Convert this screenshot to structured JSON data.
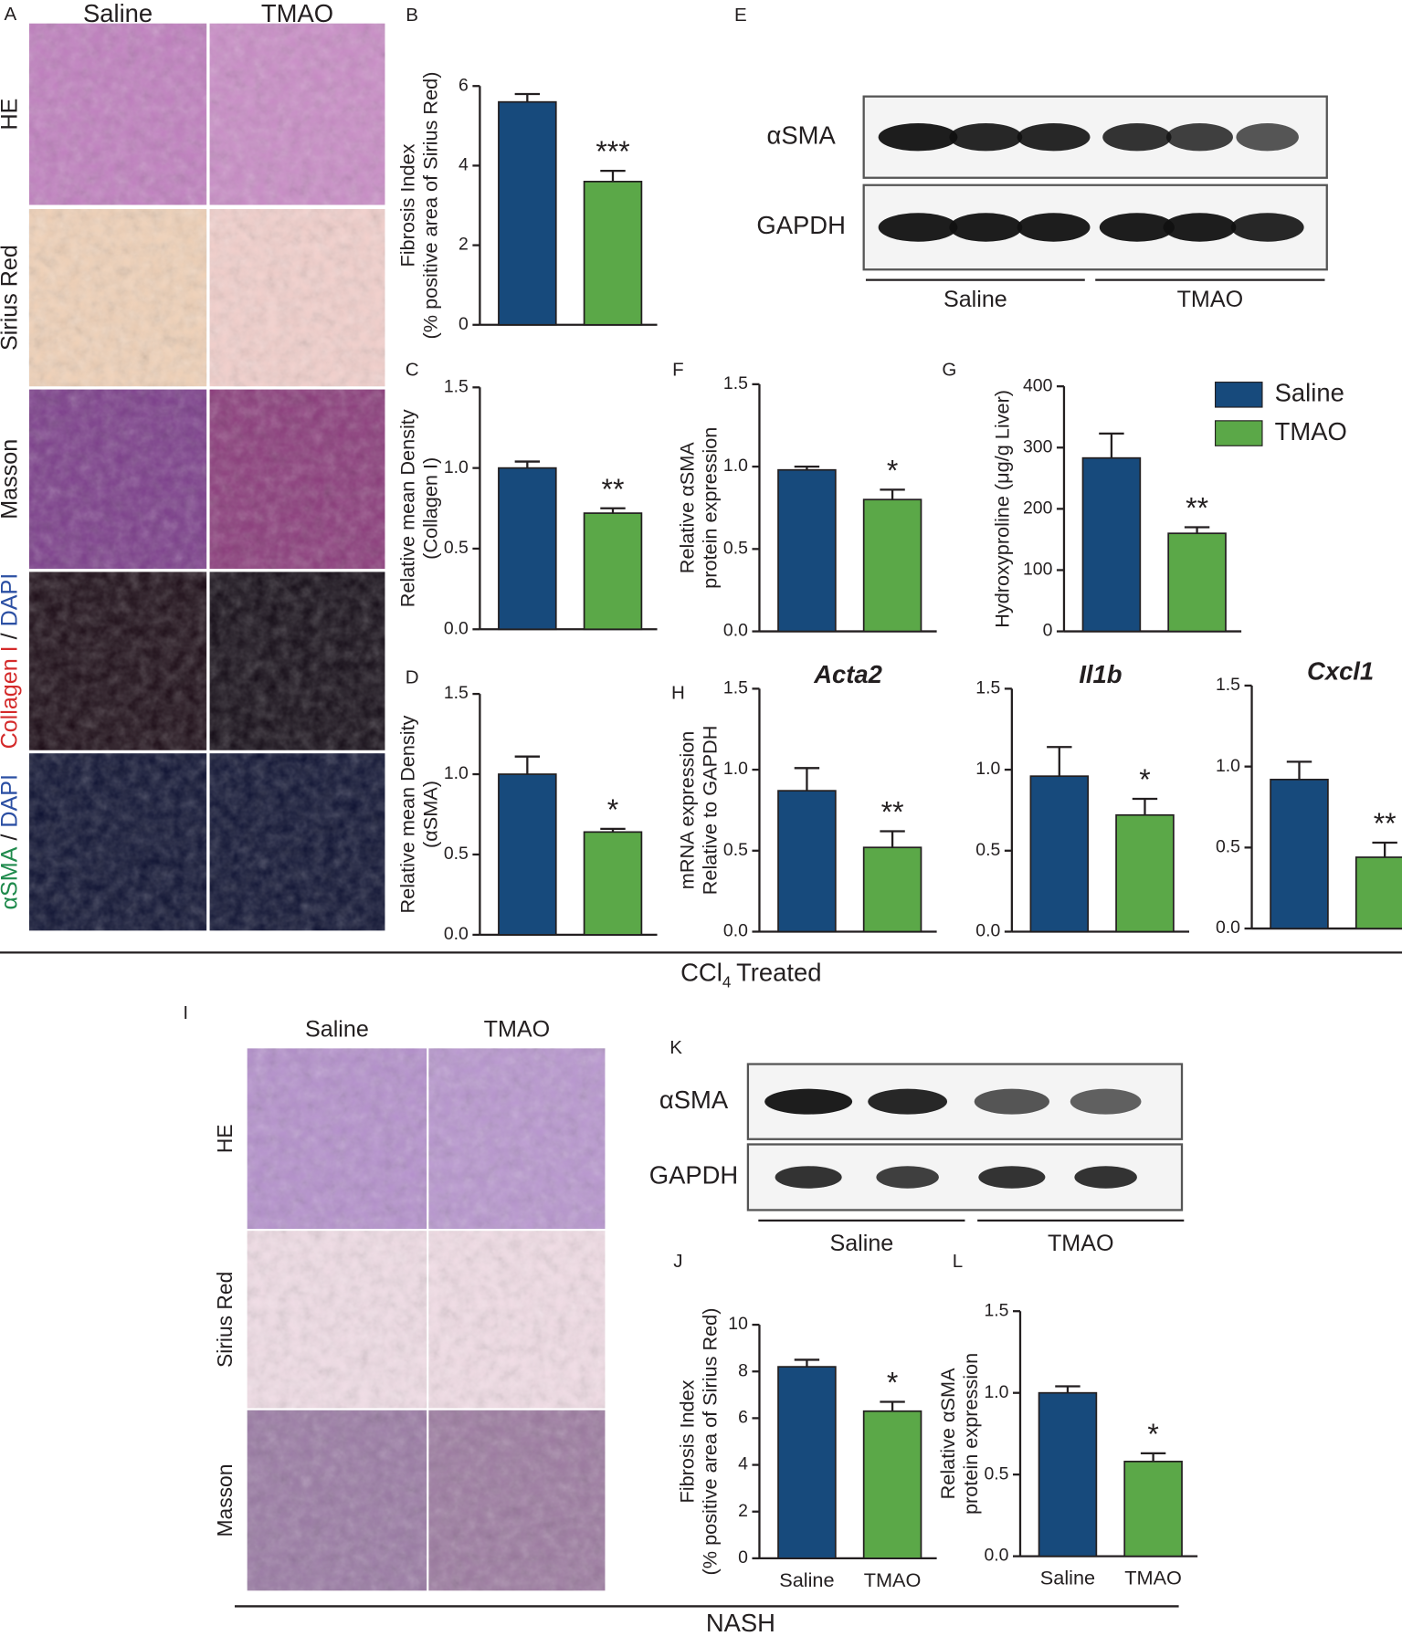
{
  "figure": {
    "panel_a": {
      "letter": "A",
      "columns": [
        "Saline",
        "TMAO"
      ],
      "rows": [
        [
          {
            "text": "HE",
            "color": "#231f20"
          }
        ],
        [
          {
            "text": "Sirius Red",
            "color": "#231f20"
          }
        ],
        [
          {
            "text": "Masson",
            "color": "#231f20"
          }
        ],
        [
          {
            "text": "Collagen I",
            "color": "#d42a2a"
          },
          {
            "text": " / ",
            "color": "#231f20"
          },
          {
            "text": "DAPI",
            "color": "#2b4fa3"
          }
        ],
        [
          {
            "text": "αSMA",
            "color": "#1f8a4c"
          },
          {
            "text": " / ",
            "color": "#231f20"
          },
          {
            "text": "DAPI",
            "color": "#2b4fa3"
          }
        ]
      ]
    },
    "panel_i": {
      "letter": "I",
      "columns": [
        "Saline",
        "TMAO"
      ],
      "rows": [
        [
          {
            "text": "HE",
            "color": "#231f20"
          }
        ],
        [
          {
            "text": "Sirius Red",
            "color": "#231f20"
          }
        ],
        [
          {
            "text": "Masson",
            "color": "#231f20"
          }
        ]
      ]
    },
    "blot_e": {
      "letter": "E",
      "proteins": [
        "αSMA",
        "GAPDH"
      ],
      "groups": [
        "Saline",
        "TMAO"
      ]
    },
    "blot_k": {
      "letter": "K",
      "proteins": [
        "αSMA",
        "GAPDH"
      ],
      "groups": [
        "Saline",
        "TMAO"
      ]
    },
    "legend": [
      {
        "name": "Saline",
        "color": "#174a7c"
      },
      {
        "name": "TMAO",
        "color": "#5ba848"
      }
    ],
    "ccl4_label": {
      "text": "CCl",
      "subscript": "4",
      "suffix": "Treated"
    },
    "nash_label": "NASH"
  },
  "chart_data": [
    {
      "type": "bar",
      "panel": "B",
      "ylabel": [
        "Fibrosis Index",
        "(% positive area of Sirius Red)"
      ],
      "categories": [
        null,
        null
      ],
      "values": [
        5.6,
        3.6
      ],
      "errors": [
        0.2,
        0.27
      ],
      "colors": [
        "#174a7c",
        "#5ba848"
      ],
      "annotation": "***",
      "ylim": [
        0,
        6
      ],
      "yticks": [
        0,
        2,
        4,
        6
      ]
    },
    {
      "type": "bar",
      "panel": "C",
      "ylabel": [
        "Relative mean Density",
        "(Collagen I)"
      ],
      "categories": [
        null,
        null
      ],
      "values": [
        1.0,
        0.72
      ],
      "errors": [
        0.04,
        0.03
      ],
      "colors": [
        "#174a7c",
        "#5ba848"
      ],
      "annotation": "**",
      "ylim": [
        0,
        1.5
      ],
      "yticks": [
        {
          "value": 0,
          "label": "0.0"
        },
        0.5,
        {
          "value": 1,
          "label": "1.0"
        },
        1.5
      ]
    },
    {
      "type": "bar",
      "panel": "D",
      "ylabel": [
        "Relative mean Density",
        "(αSMA)"
      ],
      "categories": [
        null,
        null
      ],
      "values": [
        1.0,
        0.64
      ],
      "errors": [
        0.11,
        0.02
      ],
      "colors": [
        "#174a7c",
        "#5ba848"
      ],
      "annotation": "*",
      "ylim": [
        0,
        1.5
      ],
      "yticks": [
        {
          "value": 0,
          "label": "0.0"
        },
        0.5,
        {
          "value": 1,
          "label": "1.0"
        },
        1.5
      ]
    },
    {
      "type": "bar",
      "panel": "F",
      "ylabel": [
        "Relative αSMA",
        "protein expression"
      ],
      "categories": [
        null,
        null
      ],
      "values": [
        0.98,
        0.8
      ],
      "errors": [
        0.02,
        0.06
      ],
      "colors": [
        "#174a7c",
        "#5ba848"
      ],
      "annotation": "*",
      "ylim": [
        0,
        1.5
      ],
      "yticks": [
        {
          "value": 0,
          "label": "0.0"
        },
        0.5,
        {
          "value": 1,
          "label": "1.0"
        },
        1.5
      ]
    },
    {
      "type": "bar",
      "panel": "G",
      "ylabel": [
        "Hydroxyproline (μg/g Liver)"
      ],
      "categories": [
        null,
        null
      ],
      "values": [
        283,
        160
      ],
      "errors": [
        40,
        10
      ],
      "colors": [
        "#174a7c",
        "#5ba848"
      ],
      "annotation": "**",
      "ylim": [
        0,
        400
      ],
      "yticks": [
        0,
        100,
        200,
        300,
        400
      ]
    },
    {
      "type": "bar",
      "panel": "H",
      "title": "Acta2",
      "ylabel": [
        "mRNA expression",
        "Relative to GAPDH"
      ],
      "categories": [
        null,
        null
      ],
      "values": [
        0.87,
        0.52
      ],
      "errors": [
        0.14,
        0.1
      ],
      "colors": [
        "#174a7c",
        "#5ba848"
      ],
      "annotation": "**",
      "ylim": [
        0,
        1.5
      ],
      "yticks": [
        {
          "value": 0,
          "label": "0.0"
        },
        0.5,
        {
          "value": 1,
          "label": "1.0"
        },
        1.5
      ]
    },
    {
      "type": "bar",
      "title": "Il1b",
      "categories": [
        null,
        null
      ],
      "values": [
        0.96,
        0.72
      ],
      "errors": [
        0.18,
        0.1
      ],
      "colors": [
        "#174a7c",
        "#5ba848"
      ],
      "annotation": "*",
      "ylim": [
        0,
        1.5
      ],
      "yticks": [
        {
          "value": 0,
          "label": "0.0"
        },
        0.5,
        {
          "value": 1,
          "label": "1.0"
        },
        1.5
      ]
    },
    {
      "type": "bar",
      "title": "Cxcl1",
      "categories": [
        null,
        null
      ],
      "values": [
        0.92,
        0.44
      ],
      "errors": [
        0.11,
        0.09
      ],
      "colors": [
        "#174a7c",
        "#5ba848"
      ],
      "annotation": "**",
      "ylim": [
        0,
        1.5
      ],
      "yticks": [
        {
          "value": 0,
          "label": "0.0"
        },
        0.5,
        {
          "value": 1,
          "label": "1.0"
        },
        1.5
      ]
    },
    {
      "type": "bar",
      "panel": "J",
      "ylabel": [
        "Fibrosis Index",
        "(% positive area of Sirius Red)"
      ],
      "categories": [
        "Saline",
        "TMAO"
      ],
      "values": [
        8.2,
        6.3
      ],
      "errors": [
        0.3,
        0.4
      ],
      "colors": [
        "#174a7c",
        "#5ba848"
      ],
      "annotation": "*",
      "ylim": [
        0,
        10
      ],
      "yticks": [
        0,
        2,
        4,
        6,
        8,
        10
      ]
    },
    {
      "type": "bar",
      "panel": "L",
      "ylabel": [
        "Relative αSMA",
        "protein expression"
      ],
      "categories": [
        "Saline",
        "TMAO"
      ],
      "values": [
        1.0,
        0.58
      ],
      "errors": [
        0.04,
        0.05
      ],
      "colors": [
        "#174a7c",
        "#5ba848"
      ],
      "annotation": "*",
      "ylim": [
        0,
        1.5
      ],
      "yticks": [
        {
          "value": 0,
          "label": "0.0"
        },
        0.5,
        {
          "value": 1,
          "label": "1.0"
        },
        1.5
      ]
    }
  ]
}
